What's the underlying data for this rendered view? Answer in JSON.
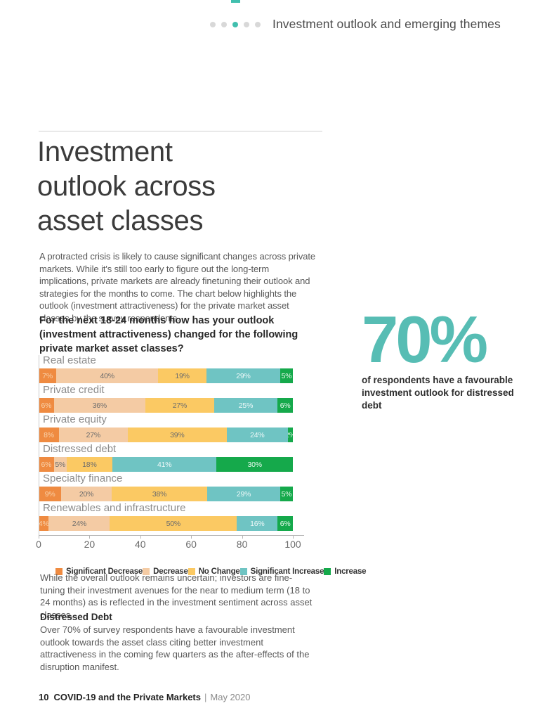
{
  "page": {
    "header": {
      "title": "Investment outlook and emerging themes",
      "dots": {
        "count": 5,
        "active_index": 2,
        "active_color": "#41bfae",
        "inactive_color": "#d8d8d8"
      }
    },
    "title": "Investment outlook across asset classes",
    "intro": "A protracted crisis is likely to cause significant changes across private markets. While it's still too early to figure out the long-term implications, private markets are already finetuning their outlook and strategies for the months to come. The chart below highlights the outlook (investment attractiveness) for the private market asset classes by the survey respondents.",
    "question": "For the next 18-24 months how has your outlook (investment attractiveness) changed for the following private market asset classes?",
    "callout": {
      "value": "70%",
      "caption": "of respondents have a favourable investment outlook for distressed debt",
      "color": "#57bdb4"
    },
    "body1": "While the overall outlook remains uncertain; investors are fine-tuning their investment avenues for the near to medium term (18 to 24 months) as is reflected in the investment sentiment across asset classes.",
    "section": {
      "heading": "Distressed Debt",
      "body": "Over 70% of survey respondents have a favourable investment outlook towards the asset class citing better investment attractiveness in the coming few quarters as the after-effects of the disruption manifest."
    },
    "footer": {
      "page_number": "10",
      "title": "COVID-19 and the Private Markets",
      "separator": "|",
      "date": "May 2020"
    }
  },
  "chart_data": {
    "type": "bar",
    "orientation": "horizontal",
    "stacked": true,
    "grid": false,
    "legend_position": "bottom",
    "value_suffix": "%",
    "categories": [
      "Real estate",
      "Private credit",
      "Private equity",
      "Distressed debt",
      "Specialty finance",
      "Renewables and infrastructure"
    ],
    "series": [
      {
        "name": "Significant Decrease",
        "color": "#ef8b41",
        "label_color": "#f8d2ab",
        "values": [
          7,
          6,
          8,
          6,
          9,
          4
        ]
      },
      {
        "name": "Decrease",
        "color": "#f4cba4",
        "label_color": "#6d6d6d",
        "values": [
          40,
          36,
          27,
          5,
          20,
          24
        ]
      },
      {
        "name": "No Change",
        "color": "#fbc963",
        "label_color": "#6d6d6d",
        "values": [
          19,
          27,
          39,
          18,
          38,
          50
        ]
      },
      {
        "name": "Significant Increase",
        "color": "#6fc4c3",
        "label_color": "#eef8f8",
        "values": [
          29,
          25,
          24,
          41,
          29,
          16
        ]
      },
      {
        "name": "Increase",
        "color": "#15a94b",
        "label_color": "#eafaf0",
        "values": [
          5,
          6,
          2,
          30,
          5,
          6
        ]
      }
    ],
    "x_axis": {
      "min": 0,
      "max": 100,
      "ticks": [
        0,
        20,
        40,
        60,
        80,
        100
      ]
    }
  }
}
